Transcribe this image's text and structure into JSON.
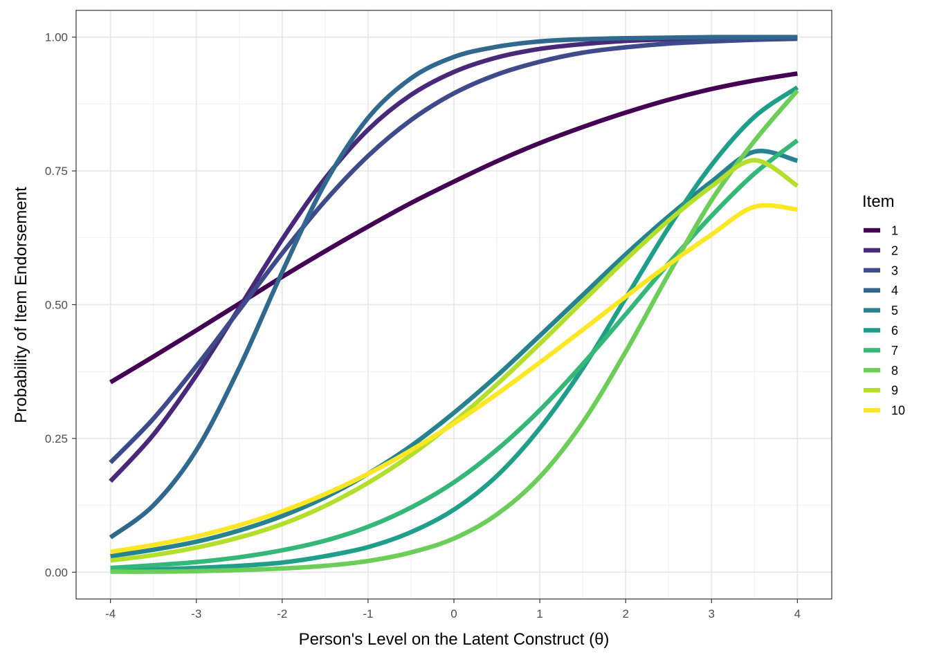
{
  "chart_data": {
    "type": "line",
    "title": "",
    "xlabel": "Person's Level on the Latent Construct (θ)",
    "ylabel": "Probability of Item Endorsement",
    "xlim": [
      -4.4,
      4.4
    ],
    "ylim": [
      -0.05,
      1.05
    ],
    "x_ticks": [
      -4,
      -3,
      -2,
      -1,
      0,
      1,
      2,
      3,
      4
    ],
    "x_tick_labels": [
      "-4",
      "-3",
      "-2",
      "-1",
      "0",
      "1",
      "2",
      "3",
      "4"
    ],
    "y_ticks": [
      0,
      0.25,
      0.5,
      0.75,
      1
    ],
    "y_tick_labels": [
      "0.00",
      "0.25",
      "0.50",
      "0.75",
      "1.00"
    ],
    "grid": true,
    "legend": {
      "title": "Item",
      "position": "right"
    },
    "x": [
      -4,
      -3.5,
      -3,
      -2.5,
      -2,
      -1.5,
      -1,
      -0.5,
      0,
      0.5,
      1,
      1.5,
      2,
      2.5,
      3,
      3.5,
      4
    ],
    "series": [
      {
        "name": "1",
        "color": "#440154",
        "values": [
          0.355,
          0.403,
          0.452,
          0.502,
          0.552,
          0.6,
          0.646,
          0.69,
          0.73,
          0.768,
          0.802,
          0.832,
          0.859,
          0.883,
          0.903,
          0.919,
          0.932
        ]
      },
      {
        "name": "2",
        "color": "#482878",
        "values": [
          0.17,
          0.257,
          0.368,
          0.494,
          0.622,
          0.736,
          0.827,
          0.892,
          0.935,
          0.962,
          0.978,
          0.987,
          0.993,
          0.996,
          0.998,
          0.999,
          0.999
        ]
      },
      {
        "name": "3",
        "color": "#3E4A89",
        "values": [
          0.205,
          0.287,
          0.385,
          0.49,
          0.596,
          0.694,
          0.778,
          0.845,
          0.895,
          0.93,
          0.954,
          0.971,
          0.981,
          0.988,
          0.992,
          0.995,
          0.997
        ]
      },
      {
        "name": "4",
        "color": "#31688E",
        "values": [
          0.065,
          0.125,
          0.228,
          0.382,
          0.561,
          0.727,
          0.849,
          0.923,
          0.963,
          0.982,
          0.992,
          0.996,
          0.998,
          0.999,
          1.0,
          1.0,
          1.0
        ]
      },
      {
        "name": "5",
        "color": "#26828E",
        "values": [
          0.03,
          0.042,
          0.057,
          0.078,
          0.105,
          0.14,
          0.184,
          0.236,
          0.298,
          0.367,
          0.442,
          0.518,
          0.594,
          0.665,
          0.73,
          0.786,
          0.769
        ]
      },
      {
        "name": "6",
        "color": "#1F9E89",
        "values": [
          0.003,
          0.005,
          0.008,
          0.012,
          0.018,
          0.03,
          0.047,
          0.075,
          0.117,
          0.18,
          0.269,
          0.381,
          0.512,
          0.644,
          0.761,
          0.851,
          0.906
        ]
      },
      {
        "name": "7",
        "color": "#35B779",
        "values": [
          0.008,
          0.013,
          0.019,
          0.028,
          0.041,
          0.059,
          0.085,
          0.121,
          0.168,
          0.229,
          0.303,
          0.389,
          0.482,
          0.577,
          0.666,
          0.745,
          0.807
        ]
      },
      {
        "name": "8",
        "color": "#6DCD59",
        "values": [
          0.001,
          0.001,
          0.002,
          0.004,
          0.007,
          0.012,
          0.021,
          0.037,
          0.063,
          0.108,
          0.178,
          0.28,
          0.412,
          0.557,
          0.695,
          0.806,
          0.9
        ]
      },
      {
        "name": "9",
        "color": "#B4DE2C",
        "values": [
          0.022,
          0.032,
          0.046,
          0.065,
          0.09,
          0.124,
          0.167,
          0.219,
          0.281,
          0.351,
          0.427,
          0.506,
          0.584,
          0.657,
          0.721,
          0.77,
          0.722
        ]
      },
      {
        "name": "10",
        "color": "#FDE725",
        "values": [
          0.038,
          0.051,
          0.067,
          0.088,
          0.114,
          0.146,
          0.184,
          0.228,
          0.278,
          0.333,
          0.392,
          0.453,
          0.515,
          0.575,
          0.631,
          0.683,
          0.678
        ]
      }
    ]
  }
}
